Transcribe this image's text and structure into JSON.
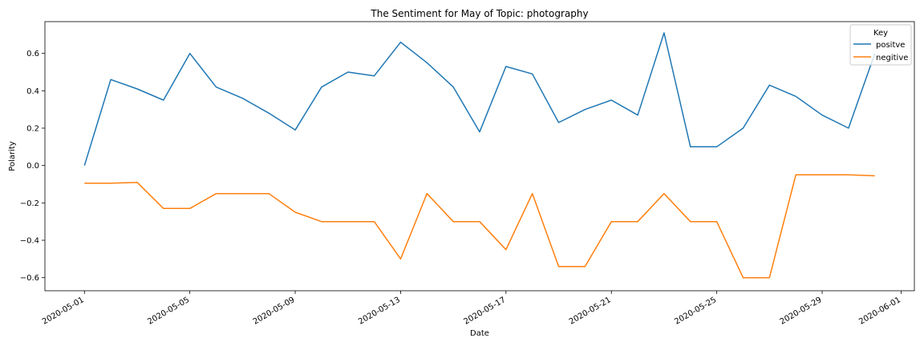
{
  "chart_data": {
    "type": "line",
    "title": "The Sentiment for May of Topic: photography",
    "xlabel": "Date",
    "ylabel": "Polarity",
    "x": [
      "2020-05-01",
      "2020-05-02",
      "2020-05-03",
      "2020-05-04",
      "2020-05-05",
      "2020-05-06",
      "2020-05-07",
      "2020-05-08",
      "2020-05-09",
      "2020-05-10",
      "2020-05-11",
      "2020-05-12",
      "2020-05-13",
      "2020-05-14",
      "2020-05-15",
      "2020-05-16",
      "2020-05-17",
      "2020-05-18",
      "2020-05-19",
      "2020-05-20",
      "2020-05-21",
      "2020-05-22",
      "2020-05-23",
      "2020-05-24",
      "2020-05-25",
      "2020-05-26",
      "2020-05-27",
      "2020-05-28",
      "2020-05-29",
      "2020-05-30",
      "2020-05-31"
    ],
    "xlim": [
      "2020-04-29.5",
      "2020-06-01.5"
    ],
    "x_ticks": [
      "2020-05-01",
      "2020-05-05",
      "2020-05-09",
      "2020-05-13",
      "2020-05-17",
      "2020-05-21",
      "2020-05-25",
      "2020-05-29",
      "2020-06-01"
    ],
    "y_ticks": [
      0.6,
      0.4,
      0.2,
      0.0,
      -0.2,
      -0.4,
      -0.6
    ],
    "y_tick_labels": [
      "0.6",
      "0.4",
      "0.2",
      "0.0",
      "−0.2",
      "−0.4",
      "−0.6"
    ],
    "ylim": [
      -0.67,
      0.77
    ],
    "grid": false,
    "legend": {
      "title": "Key",
      "placement": "top-right"
    },
    "series": [
      {
        "name": "positve",
        "color": "#1f77b4",
        "values": [
          0.0,
          0.46,
          0.41,
          0.35,
          0.6,
          0.42,
          0.36,
          0.28,
          0.19,
          0.42,
          0.5,
          0.48,
          0.66,
          0.55,
          0.42,
          0.18,
          0.53,
          0.49,
          0.23,
          0.3,
          0.35,
          0.27,
          0.71,
          0.1,
          0.1,
          0.2,
          0.43,
          0.37,
          0.27,
          0.2,
          0.6
        ]
      },
      {
        "name": "negitive",
        "color": "#ff7f0e",
        "values": [
          -0.095,
          -0.095,
          -0.09,
          -0.23,
          -0.23,
          -0.15,
          -0.15,
          -0.15,
          -0.25,
          -0.3,
          -0.3,
          -0.3,
          -0.5,
          -0.15,
          -0.3,
          -0.3,
          -0.45,
          -0.15,
          -0.54,
          -0.54,
          -0.3,
          -0.3,
          -0.15,
          -0.3,
          -0.3,
          -0.6,
          -0.6,
          -0.05,
          -0.05,
          -0.05,
          -0.055
        ]
      }
    ]
  }
}
